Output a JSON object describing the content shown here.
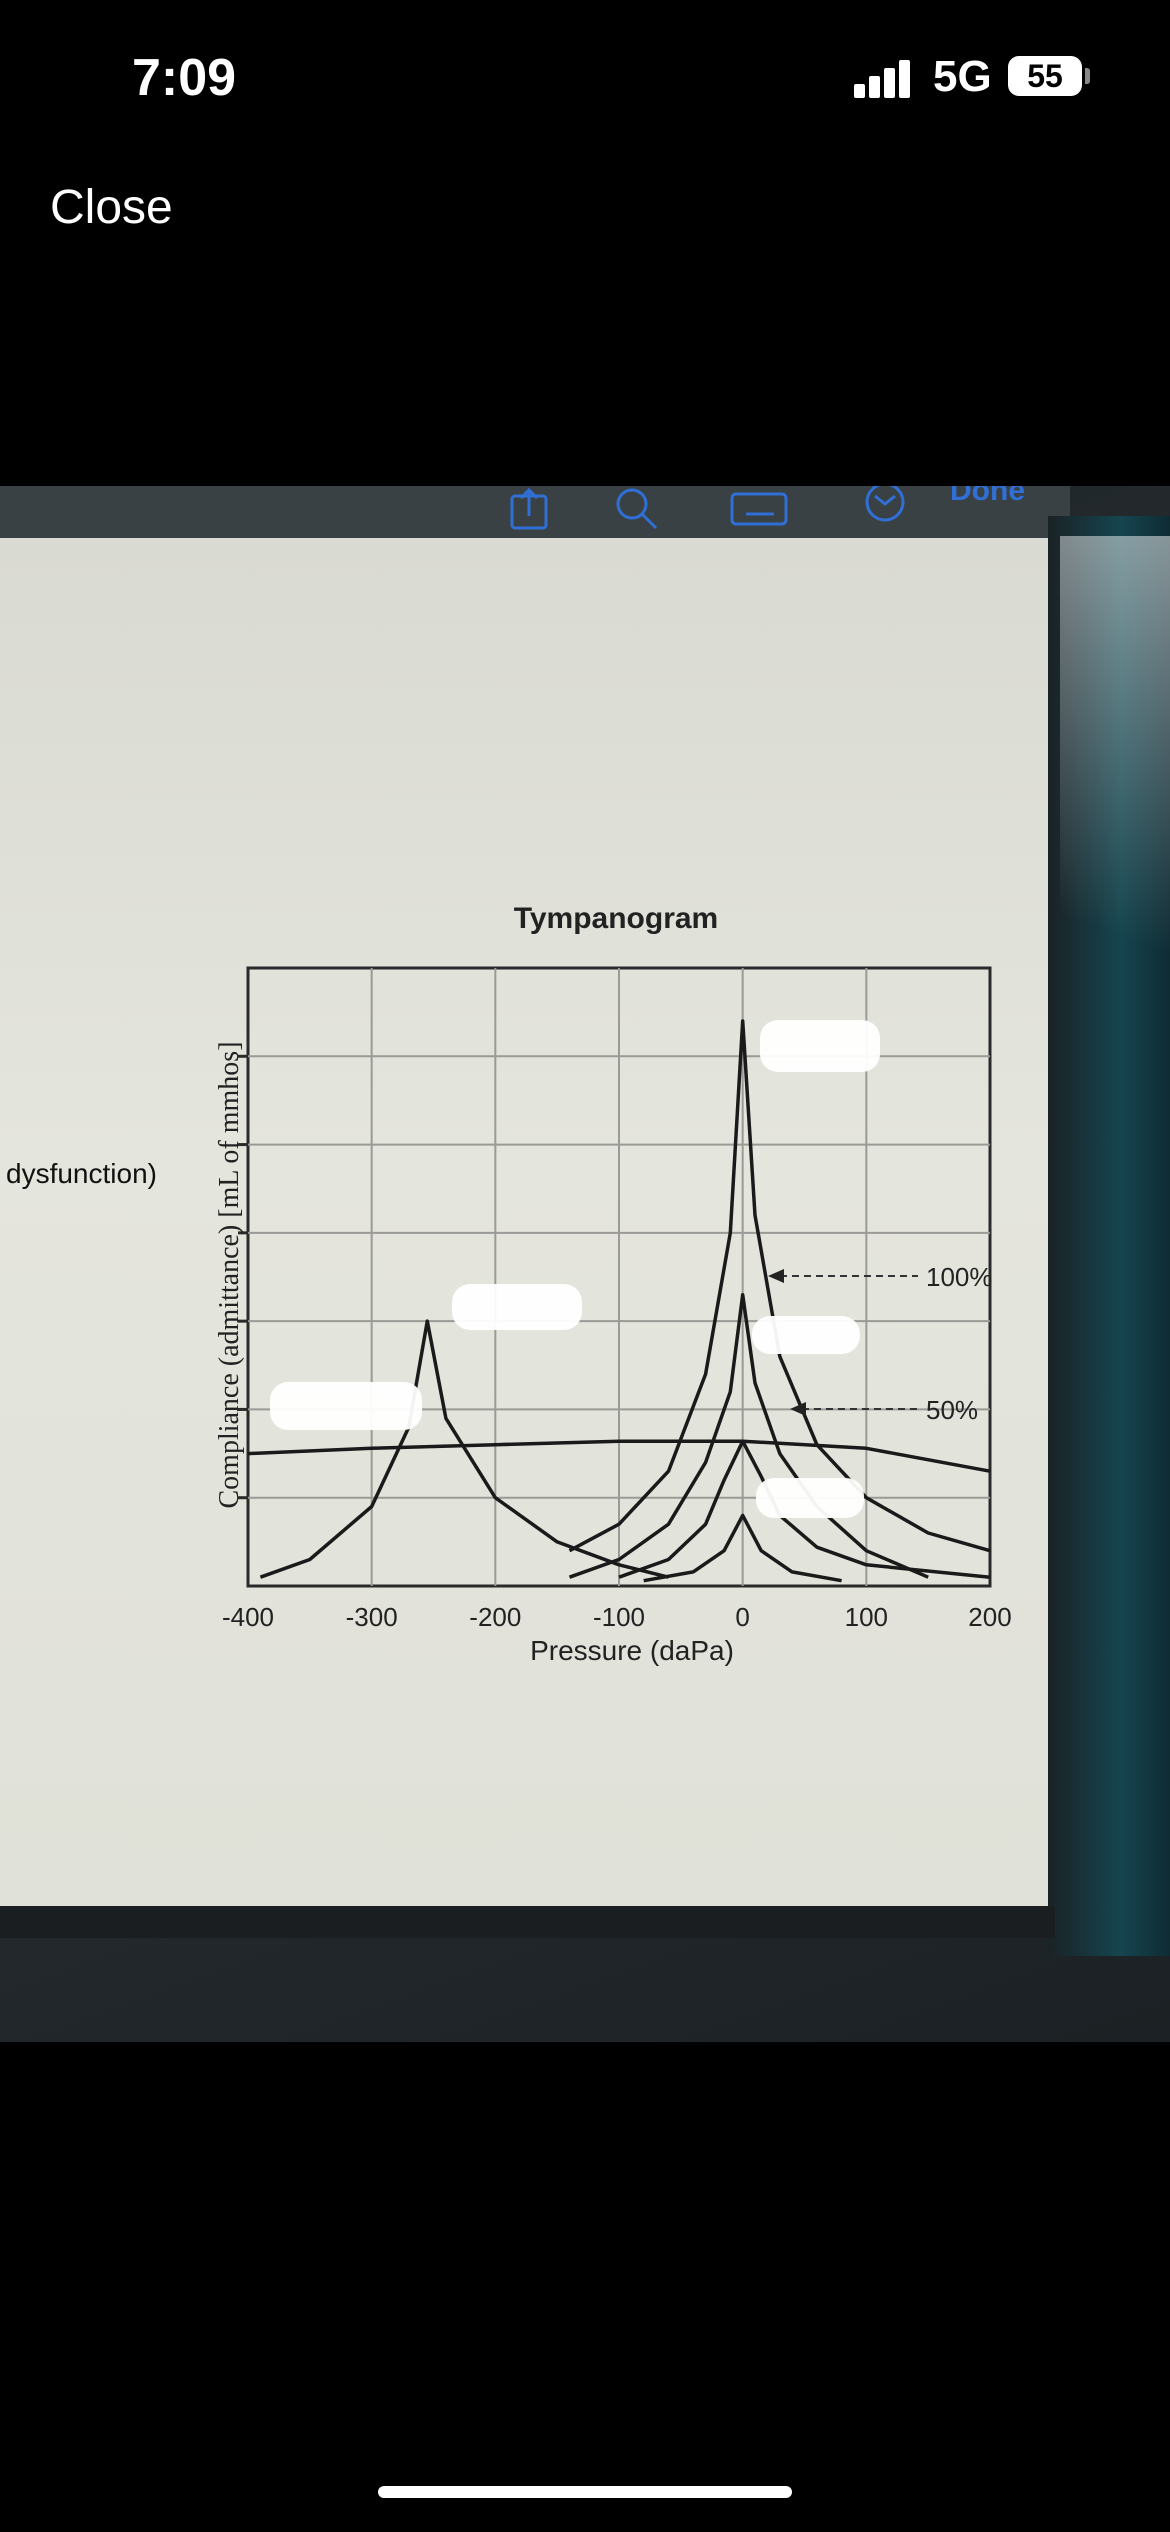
{
  "status_bar": {
    "time": "7:09",
    "network": "5G",
    "battery": "55"
  },
  "nav": {
    "close_label": "Close"
  },
  "tablet": {
    "done_label": "Done",
    "side_label": "dysfunction)"
  },
  "chart_data": {
    "type": "line",
    "title": "Tympanogram",
    "xlabel": "Pressure (daPa)",
    "ylabel": "Compliance (admittance) [mL of mmhos]",
    "xlim": [
      -400,
      200
    ],
    "x_ticks": [
      "-400",
      "-300",
      "-200",
      "-100",
      "0",
      "100",
      "200"
    ],
    "grid": true,
    "annotations": [
      "100%",
      "50%"
    ],
    "series": [
      {
        "x": [
          -390,
          -350,
          -300,
          -270,
          -255,
          -240,
          -200,
          -150,
          -100,
          -60
        ],
        "y": [
          0.05,
          0.15,
          0.45,
          0.9,
          1.5,
          0.95,
          0.5,
          0.25,
          0.12,
          0.05
        ]
      },
      {
        "x": [
          -400,
          -300,
          -200,
          -100,
          0,
          100,
          200
        ],
        "y": [
          0.75,
          0.78,
          0.8,
          0.82,
          0.82,
          0.78,
          0.65
        ]
      },
      {
        "x": [
          -140,
          -100,
          -60,
          -30,
          -10,
          0,
          10,
          30,
          60,
          100,
          150,
          200
        ],
        "y": [
          0.2,
          0.35,
          0.65,
          1.2,
          2.0,
          3.2,
          2.1,
          1.3,
          0.8,
          0.5,
          0.3,
          0.2
        ]
      },
      {
        "x": [
          -140,
          -100,
          -60,
          -30,
          -10,
          0,
          10,
          30,
          60,
          100,
          150
        ],
        "y": [
          0.05,
          0.15,
          0.35,
          0.7,
          1.1,
          1.65,
          1.15,
          0.75,
          0.45,
          0.2,
          0.05
        ]
      },
      {
        "x": [
          -100,
          -60,
          -30,
          -15,
          0,
          15,
          30,
          60,
          100,
          200
        ],
        "y": [
          0.05,
          0.15,
          0.35,
          0.6,
          0.82,
          0.62,
          0.4,
          0.22,
          0.12,
          0.05
        ]
      },
      {
        "x": [
          -80,
          -40,
          -15,
          0,
          15,
          40,
          80
        ],
        "y": [
          0.03,
          0.08,
          0.2,
          0.4,
          0.2,
          0.08,
          0.03
        ]
      }
    ]
  }
}
